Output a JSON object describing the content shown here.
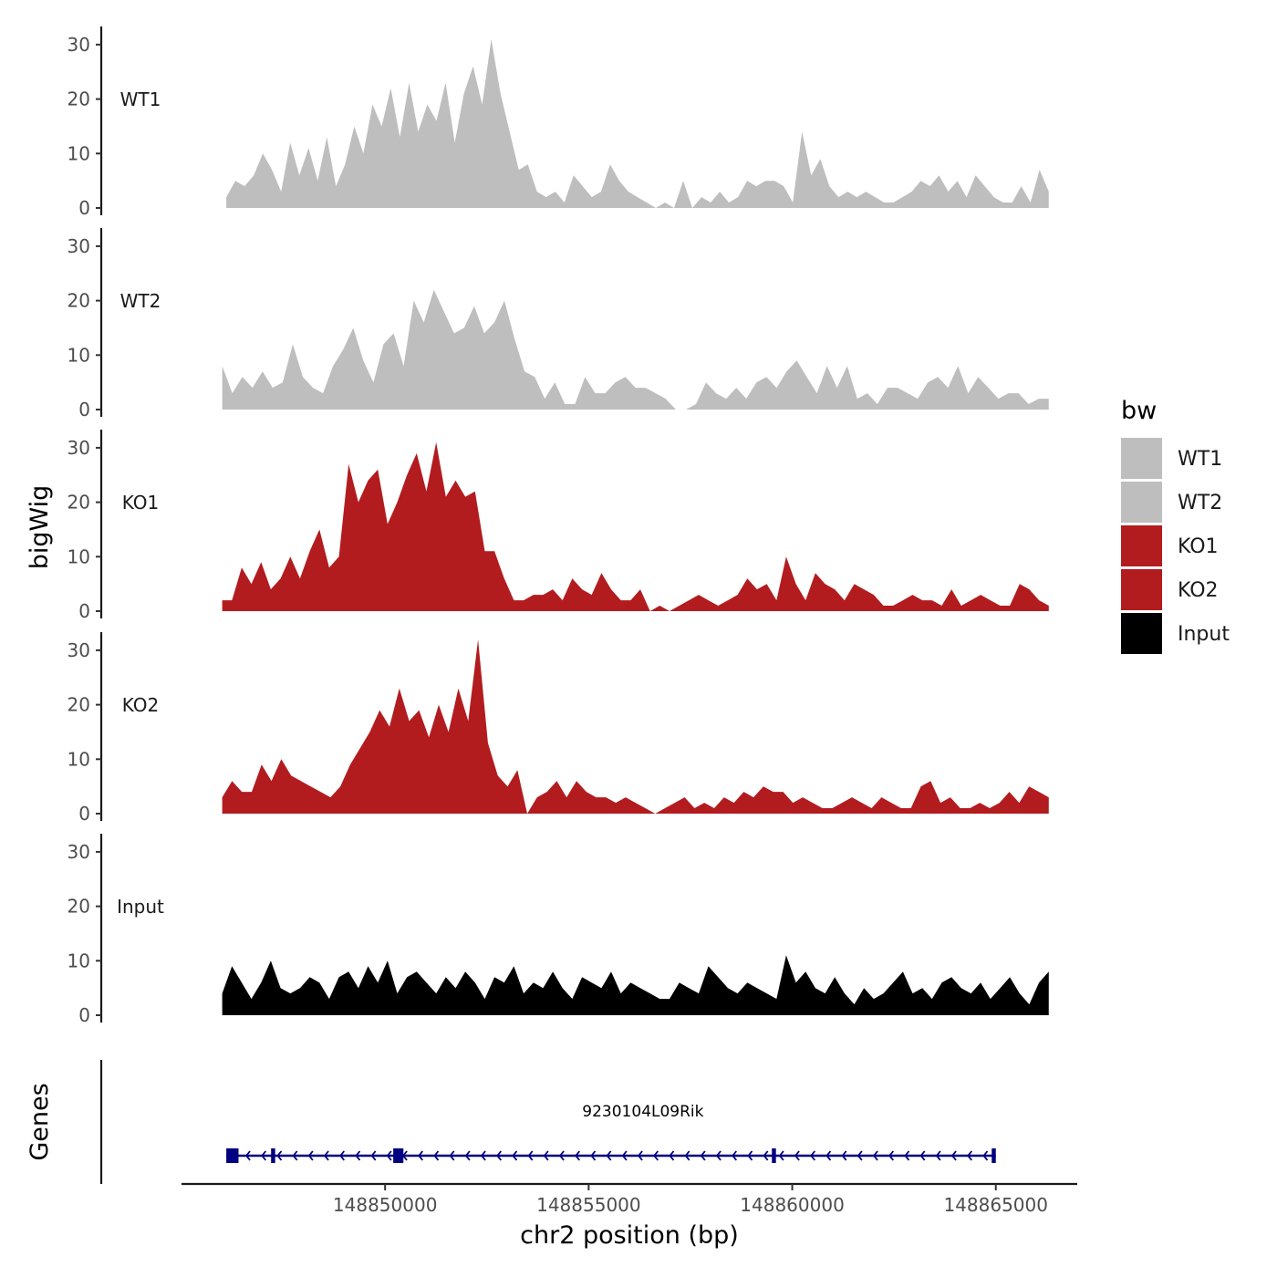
{
  "chart_data": {
    "type": "area",
    "ylabel": "bigWig",
    "xlabel": "chr2 position (bp)",
    "genes_label": "Genes",
    "xlim": [
      148845000,
      148867000
    ],
    "ylim": [
      0,
      33
    ],
    "x_ticks": [
      148850000,
      148855000,
      148860000,
      148865000
    ],
    "x_tick_labels": [
      "148850000",
      "148855000",
      "148860000",
      "148865000"
    ],
    "y_ticks": [
      0,
      10,
      20,
      30
    ],
    "y_tick_labels": [
      "0",
      "10",
      "20",
      "30"
    ],
    "legend": {
      "title": "bw",
      "entries": [
        {
          "label": "WT1",
          "color": "#bebebe"
        },
        {
          "label": "WT2",
          "color": "#bebebe"
        },
        {
          "label": "KO1",
          "color": "#b21c1f"
        },
        {
          "label": "KO2",
          "color": "#b21c1f"
        },
        {
          "label": "Input",
          "color": "#000000"
        }
      ]
    },
    "series": [
      {
        "name": "WT1",
        "color": "#bebebe",
        "x_start": 148846100,
        "x_end": 148866300,
        "values": [
          2,
          5,
          4,
          6,
          10,
          7,
          3,
          12,
          6,
          11,
          5,
          13,
          4,
          8,
          15,
          10,
          19,
          15,
          22,
          13,
          23,
          14,
          19,
          16,
          23,
          12,
          21,
          26,
          19,
          31,
          21,
          14,
          7,
          8,
          3,
          2,
          3,
          1,
          6,
          4,
          2,
          3,
          8,
          5,
          3,
          2,
          1,
          0,
          1,
          0,
          5,
          0,
          2,
          1,
          3,
          1,
          2,
          5,
          4,
          5,
          5,
          4,
          1,
          14,
          6,
          9,
          4,
          2,
          3,
          2,
          3,
          2,
          1,
          1,
          2,
          3,
          5,
          4,
          6,
          3,
          5,
          2,
          6,
          4,
          2,
          1,
          1,
          4,
          1,
          7,
          3
        ]
      },
      {
        "name": "WT2",
        "color": "#bebebe",
        "x_start": 148846000,
        "x_end": 148866300,
        "values": [
          8,
          3,
          6,
          4,
          7,
          4,
          5,
          12,
          6,
          4,
          3,
          8,
          11,
          15,
          9,
          5,
          12,
          14,
          8,
          20,
          16,
          22,
          18,
          14,
          15,
          19,
          14,
          16,
          20,
          13,
          7,
          6,
          2,
          5,
          1,
          1,
          6,
          3,
          3,
          5,
          6,
          4,
          4,
          3,
          2,
          0,
          0,
          1,
          5,
          3,
          2,
          4,
          2,
          5,
          6,
          4,
          7,
          9,
          6,
          3,
          8,
          4,
          8,
          2,
          3,
          1,
          4,
          4,
          3,
          2,
          5,
          6,
          4,
          8,
          3,
          6,
          4,
          2,
          3,
          3,
          1,
          2,
          2
        ]
      },
      {
        "name": "KO1",
        "color": "#b21c1f",
        "x_start": 148846000,
        "x_end": 148866300,
        "values": [
          2,
          2,
          8,
          5,
          9,
          4,
          6,
          10,
          6,
          11,
          15,
          8,
          10,
          27,
          20,
          24,
          26,
          16,
          20,
          25,
          29,
          22,
          31,
          21,
          24,
          21,
          22,
          11,
          11,
          6,
          2,
          2,
          3,
          3,
          4,
          2,
          6,
          4,
          3,
          7,
          4,
          2,
          2,
          4,
          0,
          1,
          0,
          1,
          2,
          3,
          2,
          1,
          2,
          3,
          6,
          4,
          5,
          2,
          10,
          5,
          2,
          7,
          5,
          4,
          2,
          5,
          4,
          3,
          1,
          1,
          2,
          3,
          2,
          2,
          1,
          4,
          1,
          2,
          3,
          2,
          1,
          1,
          5,
          4,
          2,
          1
        ]
      },
      {
        "name": "KO2",
        "color": "#b21c1f",
        "x_start": 148846000,
        "x_end": 148866300,
        "values": [
          3,
          6,
          4,
          4,
          9,
          6,
          10,
          7,
          6,
          5,
          4,
          3,
          5,
          9,
          12,
          15,
          19,
          16,
          23,
          17,
          19,
          14,
          20,
          15,
          23,
          17,
          32,
          13,
          7,
          5,
          8,
          0,
          3,
          4,
          6,
          3,
          6,
          4,
          3,
          3,
          2,
          3,
          2,
          1,
          0,
          1,
          2,
          3,
          1,
          2,
          1,
          3,
          2,
          4,
          3,
          5,
          4,
          4,
          2,
          3,
          2,
          1,
          1,
          2,
          3,
          2,
          1,
          3,
          2,
          1,
          1,
          5,
          6,
          2,
          3,
          1,
          1,
          2,
          1,
          2,
          4,
          2,
          5,
          4,
          3
        ]
      },
      {
        "name": "Input",
        "color": "#000000",
        "x_start": 148846000,
        "x_end": 148866300,
        "values": [
          4,
          9,
          6,
          3,
          6,
          10,
          5,
          4,
          5,
          7,
          6,
          3,
          7,
          8,
          5,
          9,
          6,
          10,
          4,
          7,
          8,
          6,
          4,
          7,
          5,
          8,
          6,
          3,
          7,
          6,
          9,
          4,
          6,
          5,
          8,
          5,
          3,
          7,
          6,
          5,
          8,
          4,
          6,
          5,
          4,
          3,
          3,
          6,
          5,
          4,
          9,
          7,
          5,
          4,
          6,
          5,
          4,
          3,
          11,
          6,
          8,
          5,
          4,
          7,
          4,
          2,
          5,
          3,
          4,
          6,
          8,
          4,
          5,
          3,
          6,
          7,
          5,
          4,
          6,
          3,
          5,
          7,
          4,
          2,
          6,
          8
        ]
      }
    ],
    "genes": [
      {
        "name": "9230104L09Rik",
        "strand": "-",
        "start": 148846100,
        "end": 148865000,
        "exons": [
          [
            148846100,
            148846400
          ],
          [
            148847200,
            148847300
          ],
          [
            148850200,
            148850450
          ],
          [
            148859500,
            148859600
          ],
          [
            148864900,
            148865000
          ]
        ]
      }
    ]
  }
}
